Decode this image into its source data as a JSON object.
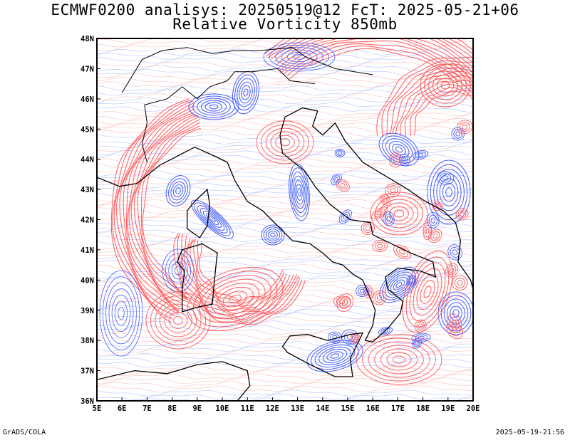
{
  "title": {
    "line1": "ECMWF0200 analisys: 20250519@12 FcT: 2025-05-21+06",
    "line2": "Relative Vorticity 850mb"
  },
  "map": {
    "projection": "lat-lon",
    "lon_range": [
      5,
      20
    ],
    "lat_range": [
      36,
      48
    ],
    "lon_ticks": [
      "5E",
      "6E",
      "7E",
      "8E",
      "9E",
      "10E",
      "11E",
      "12E",
      "13E",
      "14E",
      "15E",
      "16E",
      "17E",
      "18E",
      "19E",
      "20E"
    ],
    "lat_ticks": [
      "36N",
      "37N",
      "38N",
      "39N",
      "40N",
      "41N",
      "42N",
      "43N",
      "44N",
      "45N",
      "46N",
      "47N",
      "48N"
    ],
    "colors": {
      "positive_contours": "#ff4a4a",
      "negative_contours": "#3050ff",
      "coastlines": "#000000",
      "background": "#ffffff"
    },
    "field": "relative vorticity at 850mb, red = positive, blue = negative"
  },
  "footer": {
    "left": "GrADS/COLA",
    "right": "2025-05-19-21:56"
  }
}
